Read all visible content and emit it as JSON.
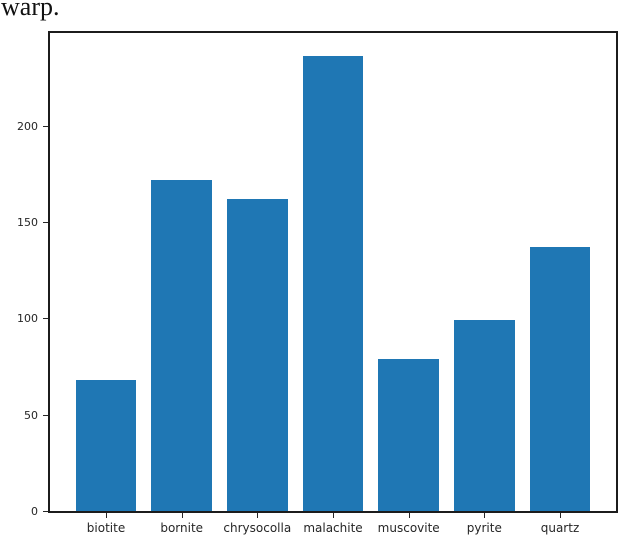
{
  "caption": {
    "text": "warp."
  },
  "chart_data": {
    "type": "bar",
    "title": "",
    "categories": [
      "biotite",
      "bornite",
      "chrysocolla",
      "malachite",
      "muscovite",
      "pyrite",
      "quartz"
    ],
    "values": [
      68,
      172,
      162,
      236,
      79,
      99,
      137
    ],
    "xlabel": "",
    "ylabel": "",
    "ylim": [
      0,
      248
    ],
    "yticks": [
      0,
      50,
      100,
      150,
      200
    ],
    "bar_color": "#1f77b4",
    "axis_color": "#1c1c1c",
    "tick_label_color": "#262626",
    "grid": false,
    "legend": "none"
  }
}
